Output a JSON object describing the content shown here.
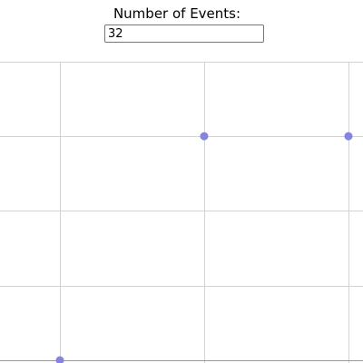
{
  "form": {
    "label": "Number of Events:",
    "input_value": "32"
  },
  "colors": {
    "grid": "#d3d3d3",
    "axis": "#9a9a9a",
    "point": "#8585e0"
  },
  "chart_data": {
    "type": "scatter",
    "title": "",
    "xlabel": "",
    "ylabel": "",
    "grid": true,
    "points": [
      {
        "x": 0,
        "y": 0
      },
      {
        "x": 1,
        "y": 3
      },
      {
        "x": 2,
        "y": 3
      }
    ]
  }
}
